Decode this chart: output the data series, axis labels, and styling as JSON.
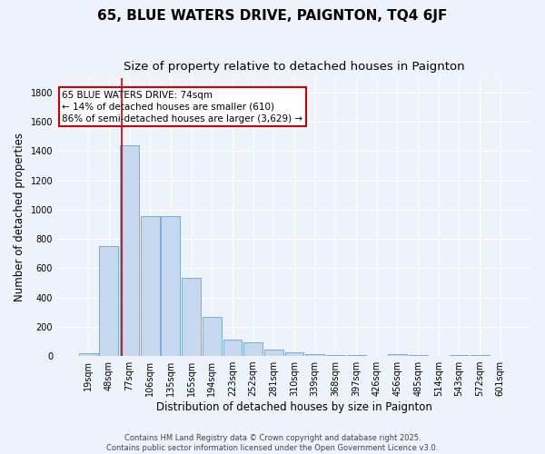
{
  "title": "65, BLUE WATERS DRIVE, PAIGNTON, TQ4 6JF",
  "subtitle": "Size of property relative to detached houses in Paignton",
  "xlabel": "Distribution of detached houses by size in Paignton",
  "ylabel": "Number of detached properties",
  "categories": [
    "19sqm",
    "48sqm",
    "77sqm",
    "106sqm",
    "135sqm",
    "165sqm",
    "194sqm",
    "223sqm",
    "252sqm",
    "281sqm",
    "310sqm",
    "339sqm",
    "368sqm",
    "397sqm",
    "426sqm",
    "456sqm",
    "485sqm",
    "514sqm",
    "543sqm",
    "572sqm",
    "601sqm"
  ],
  "values": [
    20,
    750,
    1440,
    955,
    955,
    535,
    265,
    115,
    95,
    45,
    28,
    12,
    5,
    5,
    2,
    10,
    5,
    0,
    5,
    5,
    0
  ],
  "bar_color": "#c5d8f0",
  "bar_edge_color": "#7aadd4",
  "property_line_x": 1.62,
  "annotation_title": "65 BLUE WATERS DRIVE: 74sqm",
  "annotation_line1": "← 14% of detached houses are smaller (610)",
  "annotation_line2": "86% of semi-detached houses are larger (3,629) →",
  "annotation_box_color": "#ffffff",
  "annotation_box_edge_color": "#cc0000",
  "line_color": "#cc0000",
  "footer_line1": "Contains HM Land Registry data © Crown copyright and database right 2025.",
  "footer_line2": "Contains public sector information licensed under the Open Government Licence v3.0.",
  "ylim": [
    0,
    1900
  ],
  "yticks": [
    0,
    200,
    400,
    600,
    800,
    1000,
    1200,
    1400,
    1600,
    1800
  ],
  "background_color": "#eef2fa",
  "plot_background": "#eef2fa",
  "grid_color": "#ffffff",
  "title_fontsize": 11,
  "subtitle_fontsize": 9.5,
  "tick_fontsize": 7,
  "ylabel_fontsize": 8.5,
  "xlabel_fontsize": 8.5,
  "annotation_fontsize": 7.5,
  "footer_fontsize": 6
}
